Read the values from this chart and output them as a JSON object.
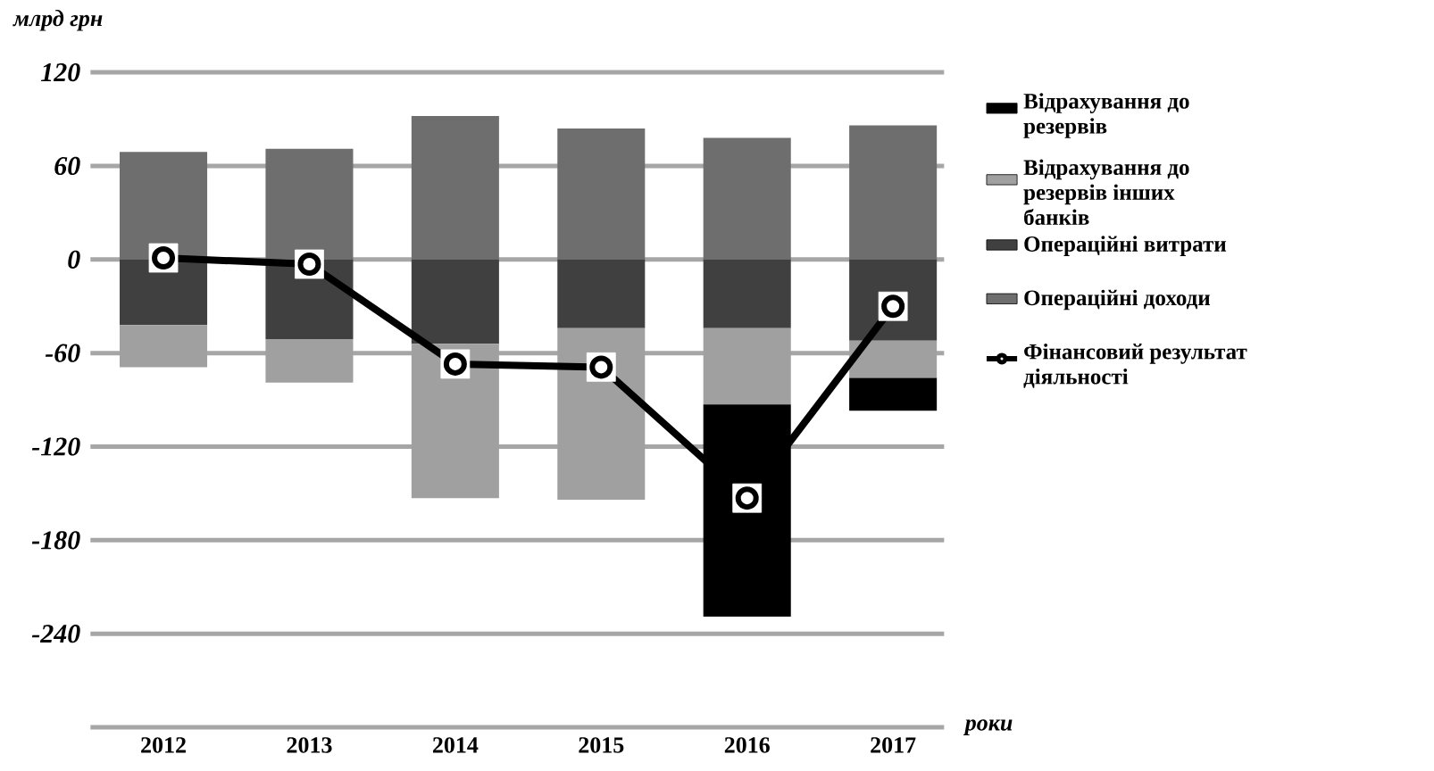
{
  "chart_data": {
    "type": "bar",
    "stacked": true,
    "ylabel": "млрд грн",
    "xlabel": "роки",
    "categories": [
      "2012",
      "2013",
      "2014",
      "2015",
      "2016",
      "2017"
    ],
    "series": [
      {
        "name": "Операційні доходи",
        "color": "#6e6e6e",
        "values": [
          69,
          71,
          92,
          84,
          78,
          86
        ]
      },
      {
        "name": "Операційні витрати",
        "color": "#404040",
        "values": [
          -42,
          -51,
          -54,
          -44,
          -44,
          -52
        ]
      },
      {
        "name": "Відрахування до резервів інших банків",
        "color": "#a0a0a0",
        "values": [
          -27,
          -28,
          -99,
          -110,
          -49,
          -24
        ]
      },
      {
        "name": "Відрахування до резервів",
        "color": "#000000",
        "values": [
          null,
          null,
          null,
          null,
          -136,
          -21
        ]
      },
      {
        "name": "Фінансовий результат діяльності",
        "type": "line",
        "color": "#000000",
        "marker": "circle",
        "values": [
          1,
          -3,
          -67,
          -69,
          -153,
          -30
        ]
      }
    ],
    "ylim": [
      -300,
      120
    ],
    "yticks": [
      120,
      60,
      0,
      -60,
      -120,
      -180,
      -240
    ],
    "grid": "y",
    "legend": "right"
  }
}
